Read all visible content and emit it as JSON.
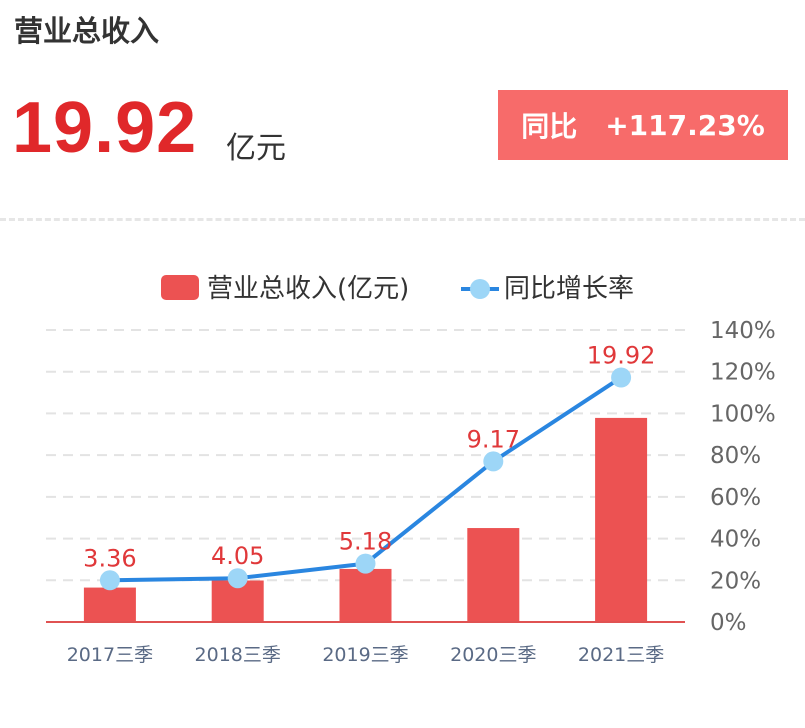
{
  "header": {
    "title": "营业总收入",
    "value": "19.92",
    "unit": "亿元",
    "yoy_label": "同比",
    "yoy_value": "+117.23%"
  },
  "colors": {
    "bar": "#ec5252",
    "line": "#2a86e0",
    "marker": "#9dd6f7",
    "accent": "#e0282a",
    "badge": "#f76b6a"
  },
  "chart_data": {
    "type": "bar",
    "categories": [
      "2017三季",
      "2018三季",
      "2019三季",
      "2020三季",
      "2021三季"
    ],
    "series": [
      {
        "name": "营业总收入(亿元)",
        "type": "bar",
        "axis": "left",
        "values": [
          3.36,
          4.05,
          5.18,
          9.17,
          19.92
        ],
        "labels": [
          "3.36",
          "4.05",
          "5.18",
          "9.17",
          "19.92"
        ]
      },
      {
        "name": "同比增长率",
        "type": "line",
        "axis": "right",
        "values": [
          20,
          21,
          28,
          77,
          117.23
        ]
      }
    ],
    "left_axis": {
      "ylim": [
        0,
        28.5
      ],
      "visible": false
    },
    "right_axis": {
      "ylim": [
        0,
        140
      ],
      "ticks": [
        0,
        20,
        40,
        60,
        80,
        100,
        120,
        140
      ],
      "tick_labels": [
        "0%",
        "20%",
        "40%",
        "60%",
        "80%",
        "100%",
        "120%",
        "140%"
      ]
    },
    "grid": true,
    "legend": "top-center"
  }
}
